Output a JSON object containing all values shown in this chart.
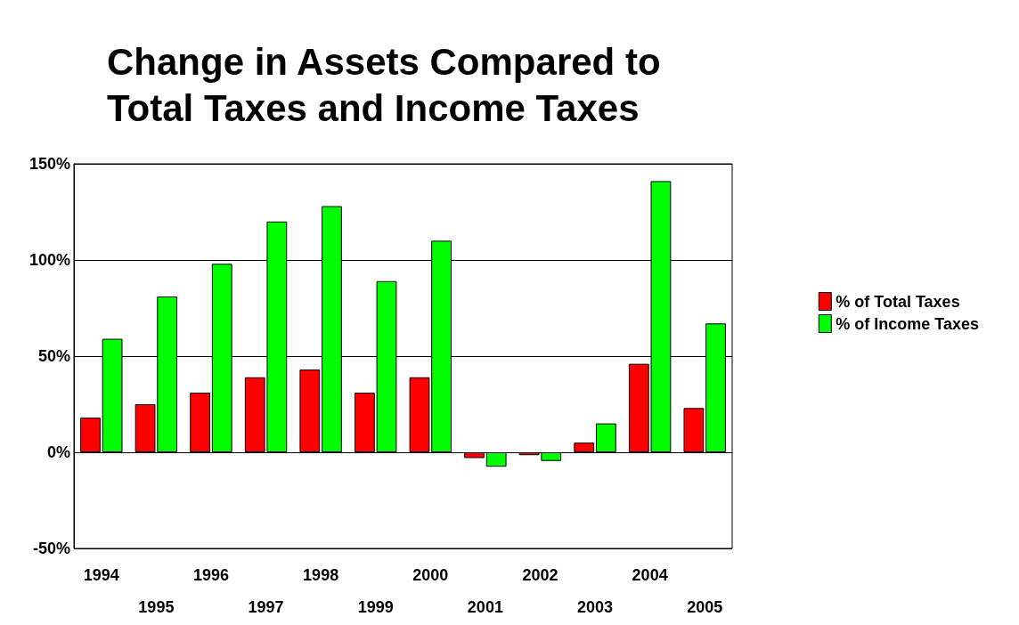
{
  "chart_data": {
    "type": "bar",
    "title": "Change in Assets Compared to\nTotal Taxes and Income Taxes",
    "categories": [
      "1994",
      "1995",
      "1996",
      "1997",
      "1998",
      "1999",
      "2000",
      "2001",
      "2002",
      "2003",
      "2004",
      "2005"
    ],
    "series": [
      {
        "name": "% of Total Taxes",
        "color": "#ff0000",
        "values": [
          18,
          25,
          31,
          39,
          43,
          31,
          39,
          -3,
          -1.5,
          5,
          46,
          23
        ]
      },
      {
        "name": "% of Income Taxes",
        "color": "#00ff00",
        "values": [
          59,
          81,
          98,
          120,
          128,
          89,
          110,
          -7.5,
          -4.5,
          15,
          141,
          67
        ]
      }
    ],
    "ylim": [
      -50,
      150
    ],
    "yticks": [
      {
        "value": -50,
        "label": "-50%"
      },
      {
        "value": 0,
        "label": "0%"
      },
      {
        "value": 50,
        "label": "50%"
      },
      {
        "value": 100,
        "label": "100%"
      },
      {
        "value": 150,
        "label": "150%"
      }
    ],
    "grid": "y",
    "legend": "right"
  }
}
